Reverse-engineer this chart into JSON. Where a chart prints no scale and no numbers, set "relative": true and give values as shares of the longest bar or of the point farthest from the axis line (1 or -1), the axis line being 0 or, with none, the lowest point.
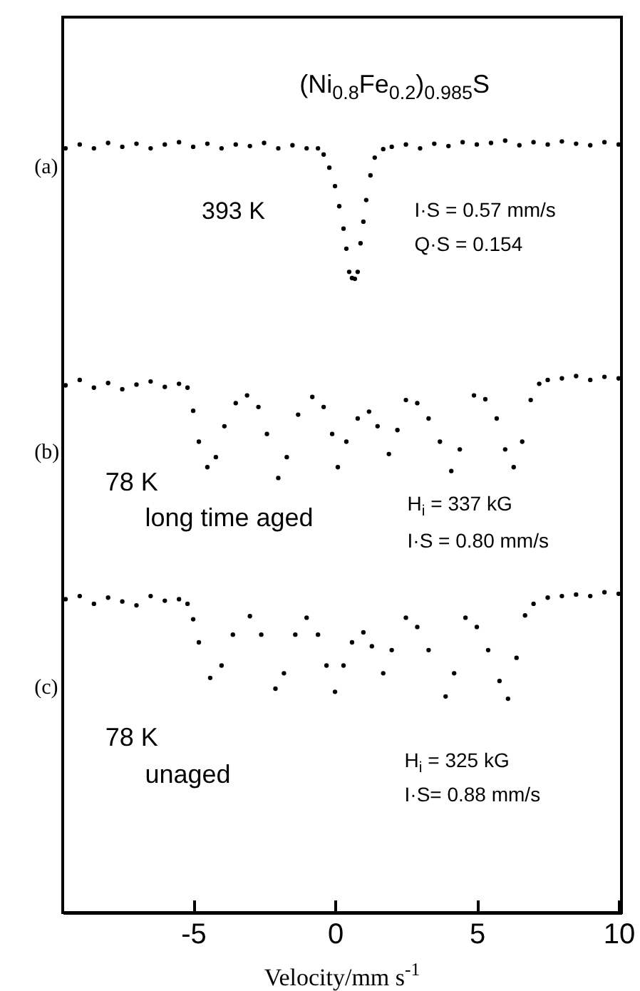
{
  "chart_data": {
    "type": "scatter",
    "title": "(Ni$_{0.8}$Fe$_{0.2}$)$_{0.985}$S",
    "xlabel": "Velocity/mm s$^{-1}$",
    "relative": true,
    "marker": "circle",
    "grid": false,
    "xlim": [
      -9.6,
      10.1
    ],
    "xticks": [
      -5,
      0,
      5,
      10
    ],
    "annotations": [
      "(a)",
      "393 K",
      "I·S = 0.57 mm/s",
      "Q·S = 0.154",
      "(b)",
      "78 K",
      "long time aged",
      "H$_{i}$ = 337 kG",
      "I·S = 0.80 mm/s",
      "(c)",
      "78 K",
      "unaged",
      "H$_{i}$ = 325 kG",
      "I·S= 0.88 mm/s"
    ],
    "series": [
      {
        "color": "#000000",
        "x": [
          -9.5,
          -9,
          -8.5,
          -8,
          -7.5,
          -7,
          -6.5,
          -6,
          -5.5,
          -5,
          -4.5,
          -4,
          -3.5,
          -3,
          -2.5,
          -2,
          -1.5,
          -1,
          -0.6,
          -0.4,
          -0.2,
          0,
          0.15,
          0.3,
          0.4,
          0.5,
          0.6,
          0.7,
          0.8,
          0.9,
          1.0,
          1.1,
          1.25,
          1.4,
          1.7,
          2,
          2.5,
          3,
          3.5,
          4,
          4.5,
          5,
          5.5,
          6,
          6.5,
          7,
          7.5,
          8,
          8.5,
          9,
          9.5,
          10
        ],
        "values": [
          0.99,
          0.995,
          0.99,
          0.997,
          0.992,
          0.996,
          0.99,
          0.995,
          0.998,
          0.992,
          0.996,
          0.99,
          0.995,
          0.993,
          0.997,
          0.99,
          0.994,
          0.99,
          0.99,
          0.982,
          0.965,
          0.941,
          0.915,
          0.886,
          0.86,
          0.83,
          0.822,
          0.821,
          0.83,
          0.867,
          0.895,
          0.923,
          0.955,
          0.978,
          0.989,
          0.992,
          0.995,
          0.99,
          0.996,
          0.993,
          0.998,
          0.995,
          0.997,
          1.0,
          0.994,
          0.998,
          0.995,
          0.999,
          0.996,
          0.994,
          0.998,
          0.995
        ]
      },
      {
        "color": "#000000",
        "x": [
          -9.5,
          -9,
          -8.5,
          -8,
          -7.5,
          -7,
          -6.5,
          -6,
          -5.5,
          -5.2,
          -5,
          -4.8,
          -4.5,
          -4.2,
          -3.9,
          -3.5,
          -3.1,
          -2.7,
          -2.4,
          -2.0,
          -1.7,
          -1.3,
          -0.8,
          -0.4,
          -0.1,
          0.1,
          0.4,
          0.8,
          1.2,
          1.5,
          1.9,
          2.2,
          2.5,
          2.9,
          3.3,
          3.7,
          4.1,
          4.4,
          4.9,
          5.3,
          5.7,
          6.0,
          6.3,
          6.6,
          6.9,
          7.2,
          7.5,
          8,
          8.5,
          9,
          9.5,
          10
        ],
        "values": [
          0.683,
          0.69,
          0.68,
          0.686,
          0.678,
          0.684,
          0.688,
          0.681,
          0.685,
          0.68,
          0.65,
          0.61,
          0.577,
          0.59,
          0.63,
          0.66,
          0.67,
          0.655,
          0.62,
          0.563,
          0.59,
          0.645,
          0.668,
          0.655,
          0.62,
          0.577,
          0.61,
          0.64,
          0.649,
          0.63,
          0.594,
          0.625,
          0.664,
          0.66,
          0.64,
          0.61,
          0.572,
          0.6,
          0.67,
          0.665,
          0.64,
          0.6,
          0.577,
          0.61,
          0.664,
          0.685,
          0.69,
          0.692,
          0.695,
          0.69,
          0.694,
          0.692
        ]
      },
      {
        "color": "#000000",
        "x": [
          -9.5,
          -9,
          -8.5,
          -8,
          -7.5,
          -7,
          -6.5,
          -6,
          -5.5,
          -5.2,
          -5,
          -4.8,
          -4.4,
          -4.0,
          -3.6,
          -3.0,
          -2.6,
          -2.1,
          -1.8,
          -1.4,
          -1.0,
          -0.6,
          -0.3,
          0.0,
          0.3,
          0.6,
          1.0,
          1.3,
          1.7,
          2.0,
          2.5,
          2.9,
          3.3,
          3.9,
          4.2,
          4.6,
          5.0,
          5.4,
          5.8,
          6.1,
          6.4,
          6.7,
          7.0,
          7.5,
          8,
          8.5,
          9,
          9.5,
          10
        ],
        "values": [
          0.406,
          0.41,
          0.4,
          0.408,
          0.403,
          0.398,
          0.41,
          0.404,
          0.406,
          0.4,
          0.38,
          0.35,
          0.304,
          0.32,
          0.36,
          0.384,
          0.36,
          0.29,
          0.31,
          0.36,
          0.382,
          0.36,
          0.32,
          0.286,
          0.32,
          0.35,
          0.363,
          0.345,
          0.31,
          0.34,
          0.382,
          0.37,
          0.34,
          0.28,
          0.31,
          0.382,
          0.37,
          0.34,
          0.3,
          0.277,
          0.33,
          0.385,
          0.4,
          0.408,
          0.41,
          0.412,
          0.41,
          0.415,
          0.413
        ]
      }
    ]
  }
}
